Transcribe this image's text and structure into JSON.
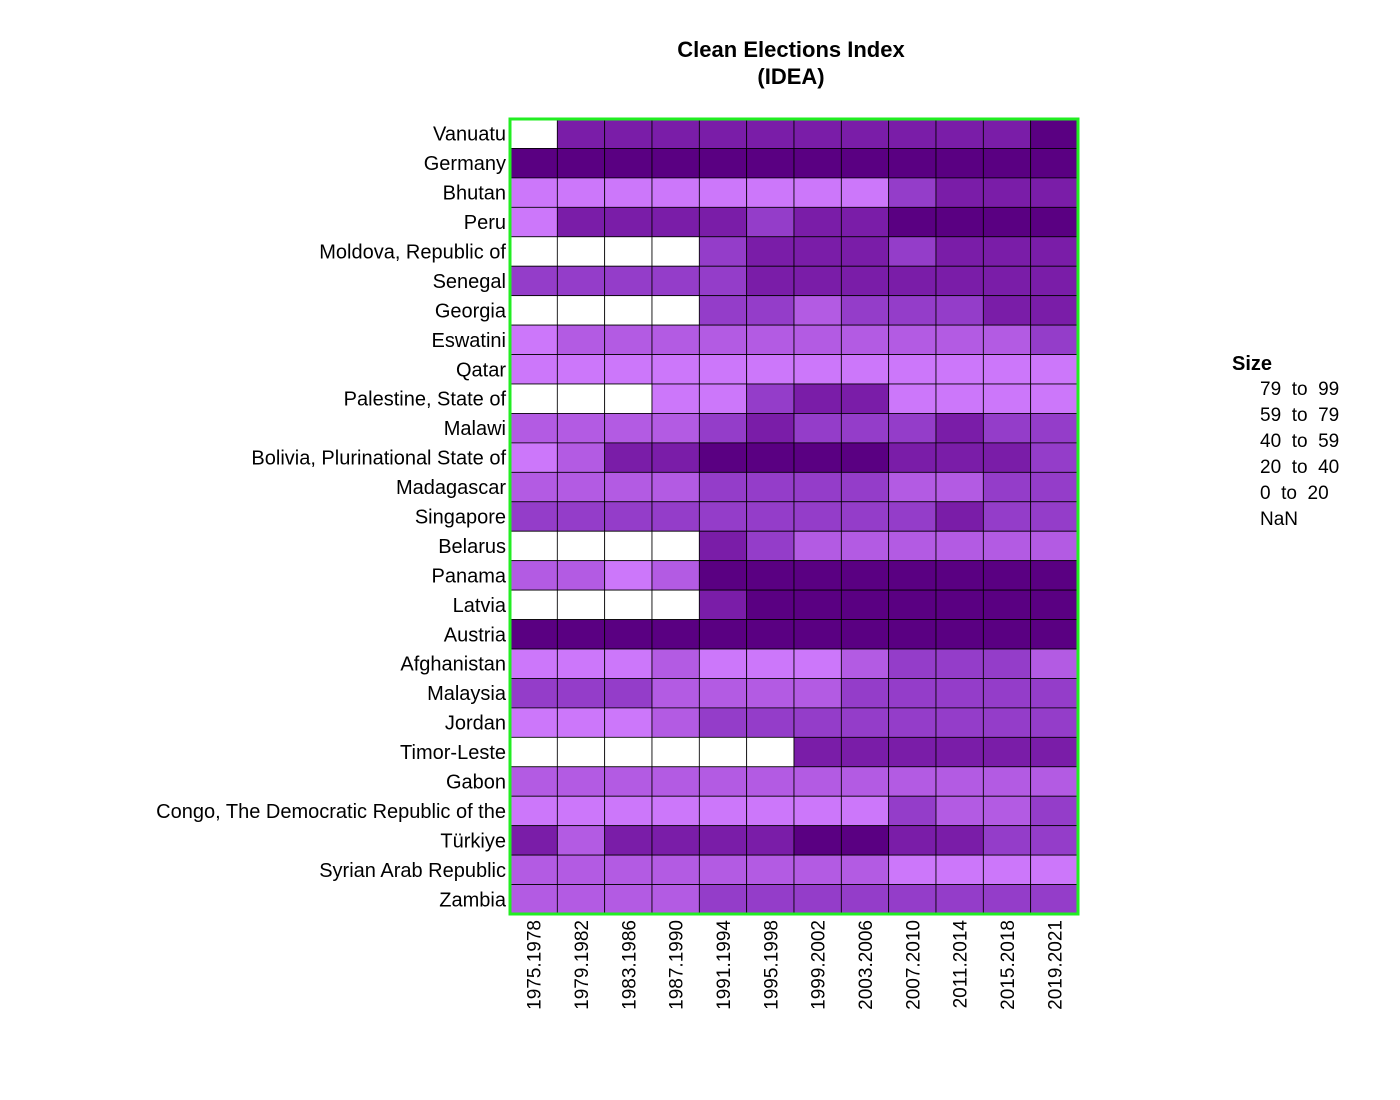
{
  "chart_data": {
    "type": "heatmap",
    "title": [
      "Clean Elections Index",
      "(IDEA)"
    ],
    "x_categories": [
      "1975.1978",
      "1979.1982",
      "1983.1986",
      "1987.1990",
      "1991.1994",
      "1995.1998",
      "1999.2002",
      "2003.2006",
      "2007.2010",
      "2011.2014",
      "2015.2018",
      "2019.2021"
    ],
    "y_categories": [
      "Vanuatu",
      "Germany",
      "Bhutan",
      "Peru",
      "Moldova, Republic of",
      "Senegal",
      "Georgia",
      "Eswatini",
      "Qatar",
      "Palestine, State of",
      "Malawi",
      "Bolivia, Plurinational State of",
      "Madagascar",
      "Singapore",
      "Belarus",
      "Panama",
      "Latvia",
      "Austria",
      "Afghanistan",
      "Malaysia",
      "Jordan",
      "Timor-Leste",
      "Gabon",
      "Congo, The Democratic Republic of the",
      "Türkiye",
      "Syrian Arab Republic",
      "Zambia"
    ],
    "values": [
      [
        null,
        68,
        68,
        70,
        70,
        70,
        72,
        70,
        72,
        70,
        68,
        90
      ],
      [
        92,
        90,
        90,
        90,
        90,
        90,
        90,
        90,
        90,
        90,
        90,
        90
      ],
      [
        10,
        10,
        10,
        10,
        10,
        10,
        10,
        10,
        50,
        68,
        68,
        70
      ],
      [
        10,
        70,
        70,
        70,
        70,
        55,
        72,
        70,
        85,
        90,
        90,
        90
      ],
      [
        null,
        null,
        null,
        null,
        50,
        68,
        72,
        70,
        55,
        70,
        72,
        70
      ],
      [
        50,
        50,
        50,
        50,
        50,
        68,
        70,
        70,
        70,
        68,
        68,
        70
      ],
      [
        null,
        null,
        null,
        null,
        50,
        50,
        30,
        50,
        50,
        50,
        68,
        70
      ],
      [
        15,
        30,
        30,
        30,
        30,
        30,
        30,
        30,
        30,
        30,
        30,
        45
      ],
      [
        10,
        15,
        15,
        15,
        15,
        15,
        15,
        15,
        15,
        15,
        15,
        15
      ],
      [
        null,
        null,
        null,
        10,
        10,
        55,
        68,
        68,
        10,
        10,
        10,
        10
      ],
      [
        30,
        30,
        30,
        30,
        50,
        68,
        50,
        50,
        50,
        68,
        50,
        50
      ],
      [
        10,
        30,
        68,
        70,
        90,
        90,
        90,
        90,
        72,
        70,
        70,
        50
      ],
      [
        30,
        30,
        30,
        30,
        50,
        50,
        50,
        50,
        30,
        30,
        50,
        50
      ],
      [
        50,
        50,
        50,
        50,
        50,
        50,
        50,
        50,
        50,
        70,
        50,
        50
      ],
      [
        null,
        null,
        null,
        null,
        68,
        55,
        30,
        30,
        30,
        30,
        30,
        30
      ],
      [
        30,
        30,
        10,
        30,
        90,
        92,
        92,
        92,
        92,
        92,
        92,
        92
      ],
      [
        null,
        null,
        null,
        null,
        70,
        92,
        92,
        92,
        92,
        92,
        92,
        92
      ],
      [
        92,
        92,
        92,
        92,
        92,
        92,
        92,
        92,
        92,
        92,
        92,
        92
      ],
      [
        10,
        10,
        10,
        30,
        10,
        10,
        10,
        30,
        50,
        50,
        50,
        30
      ],
      [
        50,
        50,
        50,
        30,
        30,
        30,
        30,
        50,
        50,
        50,
        50,
        50
      ],
      [
        10,
        10,
        10,
        30,
        50,
        50,
        50,
        50,
        50,
        50,
        50,
        50
      ],
      [
        null,
        null,
        null,
        null,
        null,
        null,
        70,
        68,
        70,
        70,
        68,
        70
      ],
      [
        30,
        30,
        30,
        30,
        30,
        30,
        30,
        30,
        30,
        30,
        30,
        30
      ],
      [
        10,
        10,
        10,
        10,
        10,
        10,
        10,
        10,
        50,
        30,
        30,
        50
      ],
      [
        70,
        30,
        70,
        70,
        70,
        70,
        90,
        92,
        70,
        68,
        50,
        50
      ],
      [
        30,
        30,
        30,
        30,
        30,
        30,
        30,
        30,
        15,
        15,
        15,
        15
      ],
      [
        30,
        30,
        30,
        30,
        50,
        50,
        50,
        50,
        50,
        50,
        50,
        50
      ]
    ],
    "legend": {
      "title": "Size",
      "placement": "right",
      "items": [
        "79  to  99",
        "59  to  79",
        "40  to  59",
        "20  to  40",
        "0  to  20",
        "NaN"
      ]
    },
    "colors": {
      "border": "#22ee22",
      "grid": "#000000",
      "nan": "#ffffff",
      "bins": [
        {
          "min": 0,
          "max": 20,
          "color": "#cc77fa"
        },
        {
          "min": 20,
          "max": 40,
          "color": "#b35be3"
        },
        {
          "min": 40,
          "max": 59,
          "color": "#943dc9"
        },
        {
          "min": 59,
          "max": 79,
          "color": "#7a1da8"
        },
        {
          "min": 79,
          "max": 99,
          "color": "#5a0082"
        }
      ]
    }
  }
}
